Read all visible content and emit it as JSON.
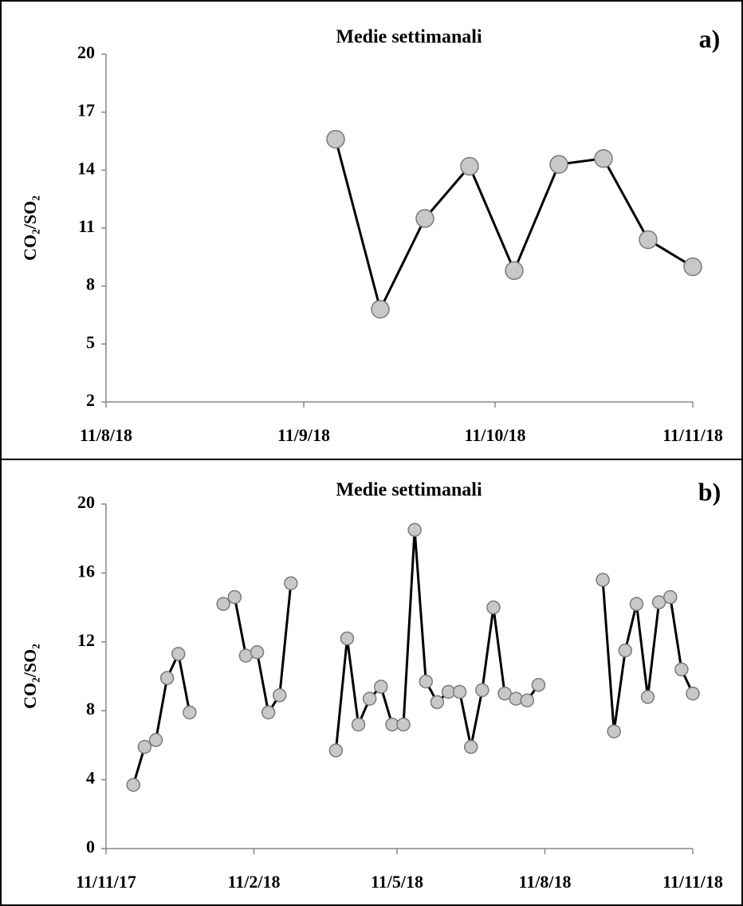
{
  "chart_data": [
    {
      "type": "line",
      "title": "Medie settimanali",
      "panel_label": "a)",
      "y_label": "CO₂/SO₂",
      "x": [
        "2018-09-16",
        "2018-09-23",
        "2018-09-30",
        "2018-10-07",
        "2018-10-14",
        "2018-10-21",
        "2018-10-28",
        "2018-11-04",
        "2018-11-11"
      ],
      "values": [
        15.6,
        6.8,
        11.5,
        14.2,
        8.8,
        14.3,
        14.6,
        10.4,
        9.0
      ],
      "color": "#000000",
      "marker_color": "#c8c8c8",
      "xlim": [
        "2018-08-11",
        "2018-11-11"
      ],
      "xticks": [
        {
          "value": "2018-08-11",
          "label": "11/8/18"
        },
        {
          "value": "2018-09-11",
          "label": "11/9/18"
        },
        {
          "value": "2018-10-11",
          "label": "11/10/18"
        },
        {
          "value": "2018-11-11",
          "label": "11/11/18"
        }
      ],
      "ylim": [
        2,
        20
      ],
      "yticks": [
        2,
        5,
        8,
        11,
        14,
        17,
        20
      ],
      "grid": false
    },
    {
      "type": "line",
      "title": "Medie settimanali",
      "panel_label": "b)",
      "y_label": "CO₂/SO₂",
      "x": [
        "2017-11-28",
        "2017-12-05",
        "2017-12-12",
        "2017-12-19",
        "2017-12-26",
        "2018-01-02",
        "2018-01-09",
        "2018-01-23",
        "2018-01-30",
        "2018-02-06",
        "2018-02-13",
        "2018-02-20",
        "2018-02-27",
        "2018-03-06",
        "2018-03-13",
        "2018-04-03",
        "2018-04-10",
        "2018-04-17",
        "2018-04-24",
        "2018-05-01",
        "2018-05-08",
        "2018-05-15",
        "2018-05-22",
        "2018-05-29",
        "2018-06-05",
        "2018-06-12",
        "2018-06-19",
        "2018-06-26",
        "2018-07-03",
        "2018-07-10",
        "2018-07-17",
        "2018-07-24",
        "2018-07-31",
        "2018-08-07",
        "2018-08-14",
        "2018-09-16",
        "2018-09-23",
        "2018-09-30",
        "2018-10-07",
        "2018-10-14",
        "2018-10-21",
        "2018-10-28",
        "2018-11-04",
        "2018-11-11"
      ],
      "values": [
        3.7,
        5.9,
        6.3,
        9.9,
        11.3,
        7.9,
        null,
        14.2,
        14.6,
        11.2,
        11.4,
        7.9,
        8.9,
        15.4,
        null,
        5.7,
        12.2,
        7.2,
        8.7,
        9.4,
        7.2,
        7.2,
        18.5,
        9.7,
        8.5,
        9.1,
        9.1,
        5.9,
        9.2,
        14.0,
        9.0,
        8.7,
        8.6,
        9.5,
        null,
        15.6,
        6.8,
        11.5,
        14.2,
        8.8,
        14.3,
        14.6,
        10.4,
        9.0
      ],
      "color": "#000000",
      "marker_color": "#c8c8c8",
      "xlim": [
        "2017-11-11",
        "2018-11-11"
      ],
      "xticks": [
        {
          "value": "2017-11-11",
          "label": "11/11/17"
        },
        {
          "value": "2018-02-11",
          "label": "11/2/18"
        },
        {
          "value": "2018-05-11",
          "label": "11/5/18"
        },
        {
          "value": "2018-08-11",
          "label": "11/8/18"
        },
        {
          "value": "2018-11-11",
          "label": "11/11/18"
        }
      ],
      "ylim": [
        0,
        20
      ],
      "yticks": [
        0,
        4,
        8,
        12,
        16,
        20
      ],
      "grid": false
    }
  ]
}
